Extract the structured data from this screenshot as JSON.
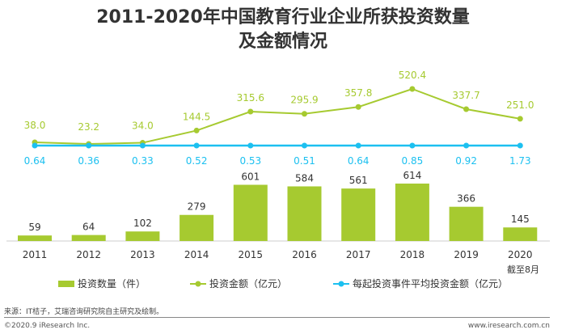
{
  "title_line1": "2011-2020年中国教育行业企业所获投资数量",
  "title_line2": "及金额情况",
  "chart_data": {
    "type": "bar+line",
    "categories": [
      "2011",
      "2012",
      "2013",
      "2014",
      "2015",
      "2016",
      "2017",
      "2018",
      "2019",
      "2020"
    ],
    "category_note": "截至8月",
    "series": [
      {
        "name": "投资数量（件）",
        "type": "bar",
        "color": "#a6ca30",
        "values": [
          59,
          64,
          102,
          279,
          601,
          584,
          561,
          614,
          366,
          145
        ]
      },
      {
        "name": "投资金额（亿元）",
        "type": "line",
        "color": "#a6ca30",
        "values": [
          38.0,
          23.2,
          34.0,
          144.5,
          315.6,
          295.9,
          357.8,
          520.4,
          337.7,
          251.0
        ]
      },
      {
        "name": "每起投资事件平均投资金额（亿元）",
        "type": "line",
        "color": "#1cc0f0",
        "values": [
          0.64,
          0.36,
          0.33,
          0.52,
          0.53,
          0.51,
          0.64,
          0.85,
          0.92,
          1.73
        ]
      }
    ],
    "legend": "bottom"
  },
  "source": "来源：IT桔子，艾瑞咨询研究院自主研究及绘制。",
  "copyright": "©2020.9 iResearch Inc.",
  "website": "www.iresearch.com.cn"
}
